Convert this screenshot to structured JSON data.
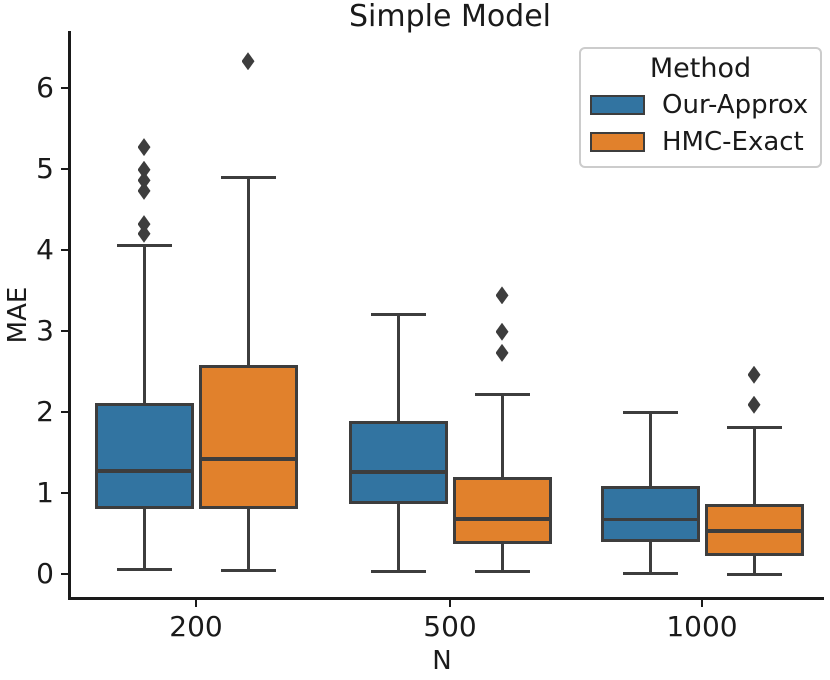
{
  "title": "Simple Model",
  "axes": {
    "xlabel": "N",
    "ylabel": "MAE"
  },
  "legend": {
    "title": "Method",
    "entries": [
      {
        "label": "Our-Approx",
        "color": "#3274a1"
      },
      {
        "label": "HMC-Exact",
        "color": "#e1812c"
      }
    ]
  },
  "chart_data": {
    "type": "boxplot",
    "title": "Simple Model",
    "xlabel": "N",
    "ylabel": "MAE",
    "categories": [
      "200",
      "500",
      "1000"
    ],
    "yticks": [
      0,
      1,
      2,
      3,
      4,
      5,
      6
    ],
    "ylim": [
      -0.3,
      6.7
    ],
    "grid": false,
    "legend_position": "upper right",
    "line_color": "#3d3d3d",
    "series": [
      {
        "name": "Our-Approx",
        "color": "#3274a1",
        "boxes": [
          {
            "category": "200",
            "whisker_low": 0.05,
            "q1": 0.8,
            "median": 1.27,
            "q3": 2.11,
            "whisker_high": 4.05,
            "outliers": [
              4.2,
              4.32,
              4.73,
              4.86,
              4.99,
              5.27
            ]
          },
          {
            "category": "500",
            "whisker_low": 0.03,
            "q1": 0.86,
            "median": 1.26,
            "q3": 1.89,
            "whisker_high": 3.2,
            "outliers": []
          },
          {
            "category": "1000",
            "whisker_low": 0.01,
            "q1": 0.39,
            "median": 0.67,
            "q3": 1.09,
            "whisker_high": 2.0,
            "outliers": []
          }
        ]
      },
      {
        "name": "HMC-Exact",
        "color": "#e1812c",
        "boxes": [
          {
            "category": "200",
            "whisker_low": 0.04,
            "q1": 0.8,
            "median": 1.42,
            "q3": 2.58,
            "whisker_high": 4.9,
            "outliers": [
              6.33
            ]
          },
          {
            "category": "500",
            "whisker_low": 0.03,
            "q1": 0.37,
            "median": 0.68,
            "q3": 1.2,
            "whisker_high": 2.22,
            "outliers": [
              2.73,
              2.99,
              3.44
            ]
          },
          {
            "category": "1000",
            "whisker_low": 0.0,
            "q1": 0.22,
            "median": 0.53,
            "q3": 0.86,
            "whisker_high": 1.81,
            "outliers": [
              2.09,
              2.46
            ]
          }
        ]
      }
    ]
  }
}
